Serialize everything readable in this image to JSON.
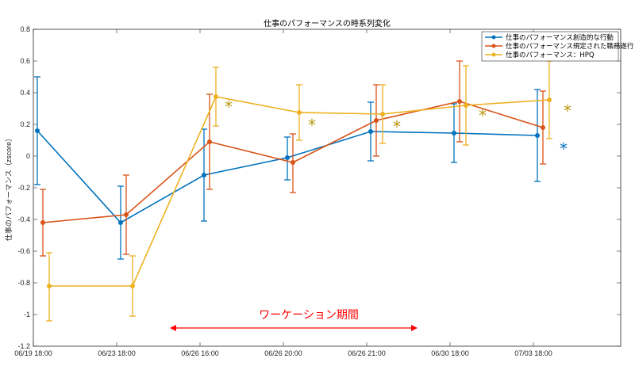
{
  "chart_data": {
    "type": "line",
    "title": "仕事のパフォーマンスの時系列変化",
    "xlabel": "",
    "ylabel": "仕事のパフォーマンス（zscore）",
    "categories": [
      "06/19 18:00",
      "06/23 18:00",
      "06/26 16:00",
      "06/26 20:00",
      "06/26 21:00",
      "06/30 18:00",
      "07/03 18:00"
    ],
    "ylim": [
      -1.2,
      0.8
    ],
    "yticks": [
      "-1.2",
      "-1",
      "-0.8",
      "-0.6",
      "-0.4",
      "-0.2",
      "0",
      "0.2",
      "0.4",
      "0.6",
      "0.8"
    ],
    "grid": false,
    "legend_position": "top-right",
    "error_bars": true,
    "series": [
      {
        "name": "仕事のパフォーマンス創造的な行動",
        "color": "#0072BD",
        "values": [
          0.16,
          -0.42,
          -0.12,
          -0.01,
          0.155,
          0.145,
          0.13
        ],
        "lower": [
          -0.18,
          -0.65,
          -0.41,
          -0.15,
          -0.03,
          -0.04,
          -0.16
        ],
        "upper": [
          0.5,
          -0.19,
          0.17,
          0.12,
          0.34,
          0.33,
          0.42
        ]
      },
      {
        "name": "仕事のパフォーマンス規定された職務遂行",
        "color": "#D95319",
        "values": [
          -0.42,
          -0.37,
          0.09,
          -0.04,
          0.225,
          0.345,
          0.18
        ],
        "lower": [
          -0.63,
          -0.62,
          -0.21,
          -0.23,
          0.0,
          0.09,
          -0.05
        ],
        "upper": [
          -0.21,
          -0.12,
          0.39,
          0.14,
          0.45,
          0.6,
          0.41
        ]
      },
      {
        "name": "仕事のパフォーマンス：HPQ",
        "color": "#EDB120",
        "values": [
          -0.82,
          -0.82,
          0.375,
          0.275,
          0.265,
          0.32,
          0.355
        ],
        "lower": [
          -1.04,
          -1.01,
          0.19,
          0.1,
          0.08,
          0.07,
          0.11
        ],
        "upper": [
          -0.61,
          -0.63,
          0.56,
          0.45,
          0.45,
          0.57,
          0.6
        ]
      }
    ],
    "significance_markers": [
      {
        "category": "06/26 16:00",
        "symbol": "*",
        "color": "#B8960C"
      },
      {
        "category": "06/26 20:00",
        "symbol": "*",
        "color": "#B8960C"
      },
      {
        "category": "06/26 21:00",
        "symbol": "*",
        "color": "#B8960C"
      },
      {
        "category": "06/30 18:00",
        "symbol": "*",
        "color": "#B8960C"
      },
      {
        "category": "07/03 18:00",
        "symbol": "*",
        "color": "#B8960C"
      },
      {
        "category": "07/03 18:00",
        "symbol": "*",
        "color": "#0072BD"
      }
    ],
    "annotation": {
      "text": "ワーケーション期間",
      "color": "#FF0000",
      "from": "06/26 16:00",
      "to": "06/26 21:00"
    }
  }
}
